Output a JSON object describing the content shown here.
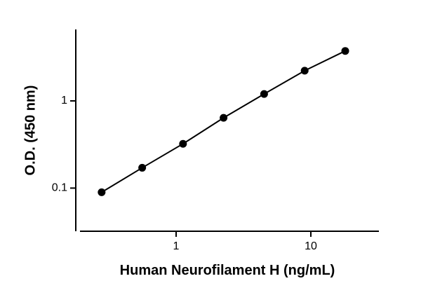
{
  "chart_data": {
    "type": "scatter",
    "x_label": "Human  Neurofilament H (ng/mL)",
    "y_label": "O.D. (450 nm)",
    "x": [
      0.28,
      0.56,
      1.125,
      2.25,
      4.5,
      9,
      18
    ],
    "series": [
      {
        "color": "#000000",
        "values": [
          0.0895,
          0.171,
          0.322,
          0.64,
          1.2,
          2.22,
          3.74
        ]
      }
    ],
    "xlim": [
      0.18,
      32
    ],
    "ylim": [
      0.032,
      6.6
    ],
    "xticks": [
      1,
      10
    ],
    "yticks": [
      0.1,
      1
    ],
    "xscale": "log",
    "yscale": "log",
    "line": true,
    "grid": false
  }
}
